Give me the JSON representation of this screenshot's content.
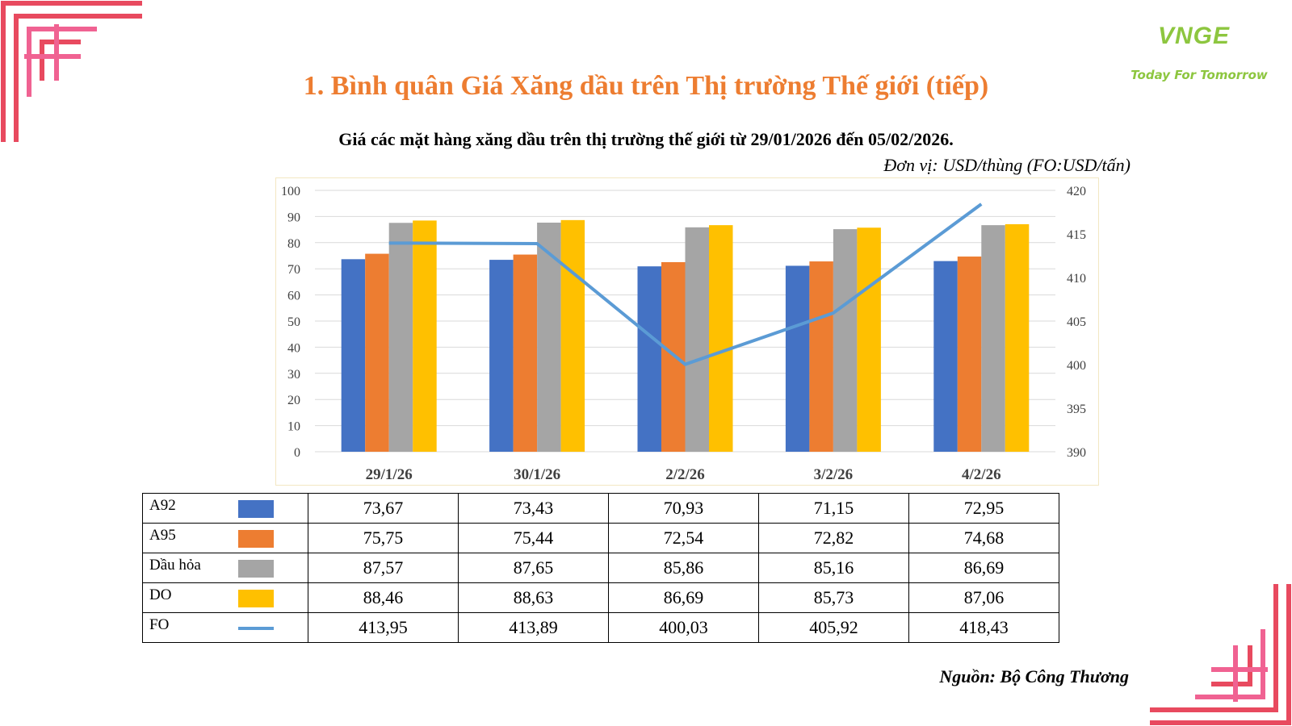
{
  "header": {
    "title": "1. Bình quân Giá Xăng dầu trên Thị trường Thế giới (tiếp)",
    "logo_mark": "VNGE",
    "logo_tagline": "Today For Tomorrow"
  },
  "chart_data": {
    "type": "bar",
    "title": "Giá các mặt hàng xăng dầu trên thị trường thế giới từ 29/01/2026 đến 05/02/2026.",
    "unit": "Đơn vị: USD/thùng (FO:USD/tấn)",
    "categories": [
      "29/1/26",
      "30/1/26",
      "2/2/26",
      "3/2/26",
      "4/2/26"
    ],
    "ylim": [
      0,
      100
    ],
    "yticks": [
      "0",
      "10",
      "20",
      "30",
      "40",
      "50",
      "60",
      "70",
      "80",
      "90",
      "100"
    ],
    "y2lim": [
      390,
      420
    ],
    "y2ticks": [
      "390",
      "395",
      "400",
      "405",
      "410",
      "415",
      "420"
    ],
    "grid": true,
    "series": [
      {
        "name": "A92",
        "type": "bar",
        "color": "#4472c4",
        "values": [
          73.67,
          73.43,
          70.93,
          71.15,
          72.95
        ],
        "labels": [
          "73,67",
          "73,43",
          "70,93",
          "71,15",
          "72,95"
        ]
      },
      {
        "name": "A95",
        "type": "bar",
        "color": "#ed7d31",
        "values": [
          75.75,
          75.44,
          72.54,
          72.82,
          74.68
        ],
        "labels": [
          "75,75",
          "75,44",
          "72,54",
          "72,82",
          "74,68"
        ]
      },
      {
        "name": "Dầu hỏa",
        "type": "bar",
        "color": "#a5a5a5",
        "values": [
          87.57,
          87.65,
          85.86,
          85.16,
          86.69
        ],
        "labels": [
          "87,57",
          "87,65",
          "85,86",
          "85,16",
          "86,69"
        ]
      },
      {
        "name": "DO",
        "type": "bar",
        "color": "#ffc000",
        "values": [
          88.46,
          88.63,
          86.69,
          85.73,
          87.06
        ],
        "labels": [
          "88,46",
          "88,63",
          "86,69",
          "85,73",
          "87,06"
        ]
      },
      {
        "name": "FO",
        "type": "line",
        "axis": "right",
        "color": "#5b9bd5",
        "values": [
          413.95,
          413.89,
          400.03,
          405.92,
          418.43
        ],
        "labels": [
          "413,95",
          "413,89",
          "400,03",
          "405,92",
          "418,43"
        ]
      }
    ]
  },
  "footer": {
    "source": "Nguồn: Bộ Công Thương"
  }
}
